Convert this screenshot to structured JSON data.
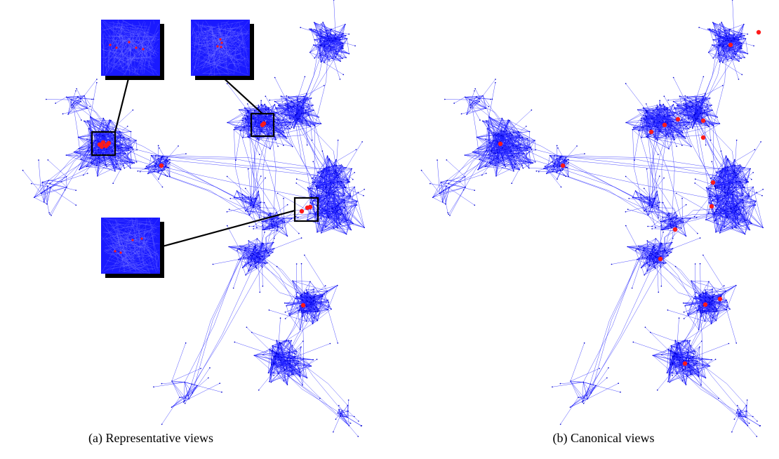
{
  "figure": {
    "panels": [
      {
        "caption": "(a) Representative views"
      },
      {
        "caption": "(b) Canonical views"
      }
    ]
  }
}
